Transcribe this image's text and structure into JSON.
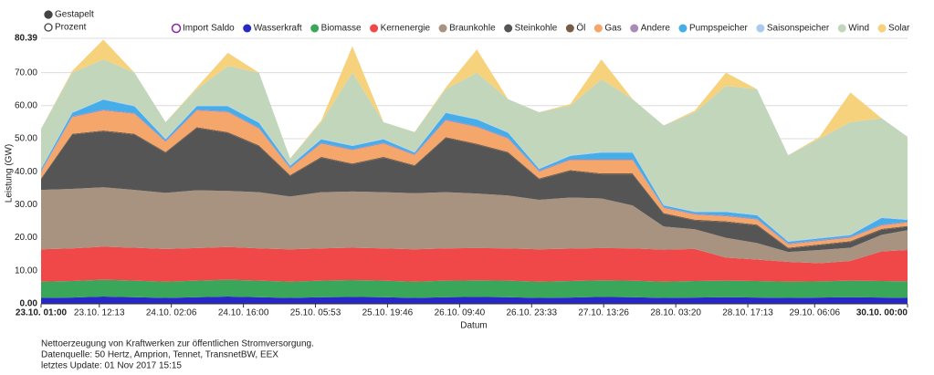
{
  "chart_data": {
    "type": "area",
    "stacked": true,
    "stack_modes": [
      "Gestapelt",
      "Prozent"
    ],
    "stack_mode_selected": 0,
    "xlabel": "Datum",
    "ylabel": "Leistung (GW)",
    "xlim": [
      "23.10. 01:00",
      "30.10. 00:00"
    ],
    "xticks": [
      "23.10. 01:00",
      "23.10. 12:13",
      "24.10. 02:06",
      "24.10. 16:00",
      "25.10. 05:53",
      "25.10. 19:46",
      "26.10. 09:40",
      "26.10. 23:33",
      "27.10. 13:26",
      "28.10. 03:20",
      "28.10. 17:13",
      "29.10. 06:06",
      "30.10. 00:00"
    ],
    "ylim": [
      0,
      80.39
    ],
    "yticks": [
      {
        "value": 0,
        "label": "0.00"
      },
      {
        "value": 10,
        "label": "10.00"
      },
      {
        "value": 20,
        "label": "20.00"
      },
      {
        "value": 30,
        "label": "30.00"
      },
      {
        "value": 40,
        "label": "40.00"
      },
      {
        "value": 50,
        "label": "50.00"
      },
      {
        "value": 60,
        "label": "60.00"
      },
      {
        "value": 70,
        "label": "70.00"
      },
      {
        "value": 80.39,
        "label": "80.39"
      }
    ],
    "grid": true,
    "x": [
      "23.10. 01:00",
      "23.10. 07:00",
      "23.10. 13:00",
      "23.10. 19:00",
      "24.10. 01:00",
      "24.10. 07:00",
      "24.10. 13:00",
      "24.10. 19:00",
      "25.10. 01:00",
      "25.10. 07:00",
      "25.10. 13:00",
      "25.10. 19:00",
      "26.10. 01:00",
      "26.10. 07:00",
      "26.10. 13:00",
      "26.10. 19:00",
      "27.10. 01:00",
      "27.10. 07:00",
      "27.10. 13:00",
      "27.10. 19:00",
      "28.10. 01:00",
      "28.10. 07:00",
      "28.10. 13:00",
      "28.10. 19:00",
      "29.10. 01:00",
      "29.10. 07:00",
      "29.10. 13:00",
      "29.10. 19:00",
      "30.10. 00:00"
    ],
    "series": [
      {
        "name": "Import Saldo",
        "color": "#8e24aa",
        "visible": false
      },
      {
        "name": "Wasserkraft",
        "color": "#2828c8",
        "values": [
          1.8,
          1.9,
          2.2,
          2.0,
          1.8,
          2.0,
          2.2,
          2.0,
          1.8,
          2.0,
          2.1,
          2.0,
          1.8,
          2.0,
          2.1,
          2.0,
          1.8,
          1.9,
          2.1,
          2.0,
          1.8,
          1.9,
          2.0,
          1.9,
          1.8,
          1.9,
          2.0,
          1.9,
          1.8
        ]
      },
      {
        "name": "Biomasse",
        "color": "#3aa65a",
        "values": [
          4.9,
          5.0,
          5.1,
          5.0,
          4.9,
          5.0,
          5.1,
          5.0,
          4.9,
          5.0,
          5.1,
          5.0,
          4.9,
          5.0,
          5.0,
          5.0,
          4.9,
          5.0,
          5.0,
          5.0,
          4.9,
          5.0,
          5.0,
          5.0,
          4.9,
          4.9,
          5.0,
          5.0,
          5.0
        ]
      },
      {
        "name": "Kernenergie",
        "color": "#f04848",
        "values": [
          9.8,
          9.9,
          10.0,
          10.0,
          9.9,
          9.9,
          9.9,
          9.8,
          9.8,
          9.8,
          9.8,
          9.8,
          9.8,
          9.8,
          9.8,
          9.8,
          9.8,
          9.8,
          9.8,
          9.8,
          9.7,
          9.7,
          7.0,
          6.5,
          6.0,
          5.5,
          6.0,
          9.0,
          9.5
        ]
      },
      {
        "name": "Braunkohle",
        "color": "#a89280",
        "values": [
          18,
          18,
          18,
          17.5,
          17,
          17.5,
          17,
          17,
          16,
          17,
          17,
          17,
          17,
          17,
          16.5,
          16,
          15,
          15.5,
          15,
          13,
          7,
          6,
          6,
          5,
          3,
          4,
          4,
          5,
          6
        ]
      },
      {
        "name": "Steinkohle",
        "color": "#555555",
        "values": [
          3.2,
          16.4,
          16.9,
          16.7,
          12.1,
          18.8,
          17.5,
          13.9,
          6.2,
          10.4,
          8.2,
          10.4,
          8.2,
          16.4,
          14.8,
          12.9,
          6.2,
          8,
          7.3,
          9.4,
          3.8,
          2.6,
          4.7,
          5.3,
          1.0,
          1.4,
          1.7,
          1.5,
          1.0
        ]
      },
      {
        "name": "Öl",
        "color": "#7a5c45",
        "values": [
          0.3,
          0.3,
          0.3,
          0.3,
          0.3,
          0.3,
          0.3,
          0.3,
          0.3,
          0.3,
          0.3,
          0.3,
          0.3,
          0.3,
          0.3,
          0.3,
          0.3,
          0.3,
          0.3,
          0.3,
          0.3,
          0.3,
          0.3,
          0.3,
          0.3,
          0.3,
          0.3,
          0.3,
          0.3
        ]
      },
      {
        "name": "Gas",
        "color": "#f5a66a",
        "values": [
          2,
          5,
          6,
          6,
          3,
          5,
          6,
          5,
          2,
          4,
          4,
          4,
          3,
          5,
          5,
          4,
          2,
          3,
          4,
          4,
          1.5,
          1.5,
          1.5,
          1.5,
          1,
          1,
          1,
          1,
          1
        ]
      },
      {
        "name": "Andere",
        "color": "#a98bb5",
        "values": [
          0.3,
          0.3,
          0.3,
          0.3,
          0.3,
          0.3,
          0.3,
          0.3,
          0.3,
          0.3,
          0.3,
          0.3,
          0.3,
          0.3,
          0.3,
          0.3,
          0.3,
          0.3,
          0.3,
          0.3,
          0.3,
          0.3,
          0.3,
          0.3,
          0.3,
          0.3,
          0.3,
          0.3,
          0.3
        ]
      },
      {
        "name": "Pumpspeicher",
        "color": "#45ade8",
        "values": [
          0.5,
          1,
          3,
          2,
          0.5,
          1,
          1.5,
          1.5,
          0.5,
          1,
          1,
          1,
          0.5,
          2,
          2,
          1.5,
          0.5,
          1,
          2,
          2,
          0.5,
          0.5,
          1,
          1,
          0.5,
          0.5,
          0.5,
          2,
          0.5
        ]
      },
      {
        "name": "Saisonspeicher",
        "color": "#a8cbef",
        "values": [
          0.2,
          0.2,
          0.2,
          0.2,
          0.2,
          0.2,
          0.2,
          0.2,
          0.2,
          0.2,
          0.2,
          0.2,
          0.2,
          0.2,
          0.2,
          0.2,
          0.2,
          0.2,
          0.2,
          0.2,
          0.2,
          0.2,
          0.2,
          0.2,
          0.2,
          0.2,
          0.2,
          0.2,
          0.2
        ]
      },
      {
        "name": "Wind",
        "color": "#c2d6bc",
        "values": [
          12,
          12,
          12,
          10,
          5,
          5,
          12,
          15,
          2,
          5,
          22,
          5,
          6,
          7,
          14,
          10,
          17,
          15,
          22,
          16,
          24,
          30,
          38,
          38,
          26,
          30,
          34,
          30,
          25
        ]
      },
      {
        "name": "Solar",
        "color": "#f7d27c",
        "values": [
          0,
          0.5,
          6,
          0,
          0,
          0.5,
          4,
          0,
          0,
          0.5,
          8,
          0,
          0,
          0.5,
          7,
          0,
          0,
          0.5,
          6,
          0,
          0,
          0.5,
          4,
          0,
          0,
          0.5,
          9,
          0,
          0
        ]
      }
    ],
    "notes": [
      "Nettoerzeugung von Kraftwerken zur öffentlichen Stromversorgung.",
      "Datenquelle: 50 Hertz, Amprion, Tennet, TransnetBW, EEX",
      "letztes Update: 01 Nov 2017 15:15"
    ]
  }
}
